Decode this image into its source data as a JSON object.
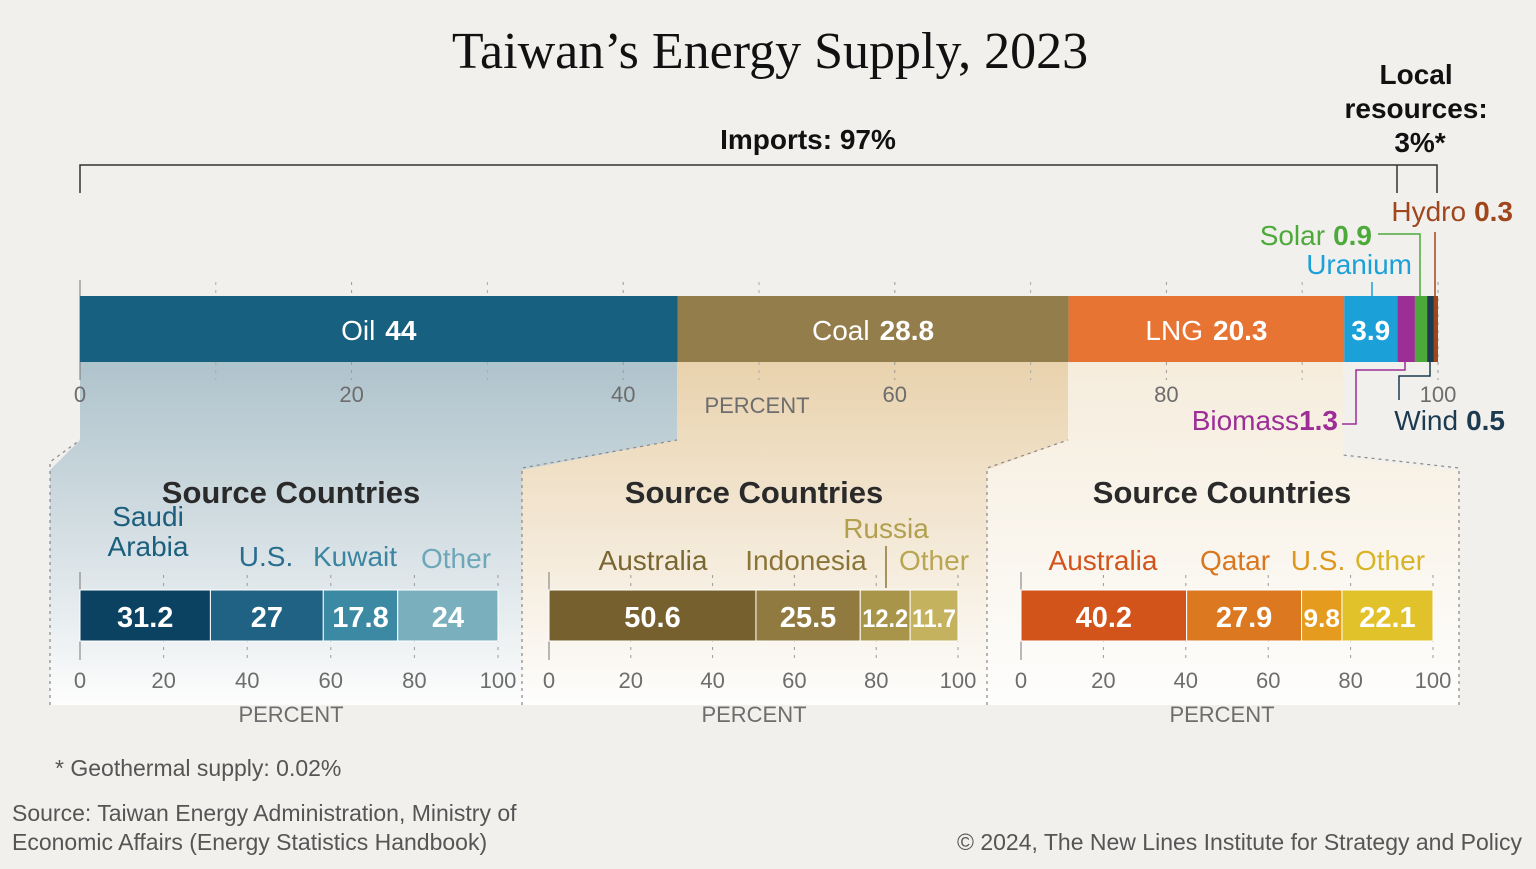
{
  "title": "Taiwan’s Energy Supply, 2023",
  "imports_label": "Imports: 97%",
  "local_label": [
    "Local",
    "resources:",
    "3%*"
  ],
  "footnote": "*  Geothermal supply: 0.02%",
  "source": [
    "Source: Taiwan Energy Administration, Ministry of",
    "Economic Affairs (Energy Statistics Handbook)"
  ],
  "copyright": "© 2024, The New Lines Institute for Strategy and Policy",
  "chart_data": [
    {
      "type": "bar",
      "orientation": "horizontal-stacked",
      "xlabel": "PERCENT",
      "xlim": [
        0,
        100
      ],
      "ticks": [
        "0",
        "20",
        "40",
        "60",
        "80",
        "100"
      ],
      "series": [
        {
          "name": "Oil",
          "value": 44,
          "color": "#17607f"
        },
        {
          "name": "Coal",
          "value": 28.8,
          "color": "#937d4a"
        },
        {
          "name": "LNG",
          "value": 20.3,
          "color": "#e77433"
        },
        {
          "name": "Uranium",
          "value": 3.9,
          "color": "#1ba0d8"
        },
        {
          "name": "Biomass",
          "value": 1.3,
          "color": "#9c2e96"
        },
        {
          "name": "Solar",
          "value": 0.9,
          "color": "#4ea93b"
        },
        {
          "name": "Wind",
          "value": 0.5,
          "color": "#1c3a50"
        },
        {
          "name": "Hydro",
          "value": 0.3,
          "color": "#a0461d"
        }
      ]
    },
    {
      "type": "bar",
      "orientation": "horizontal-stacked",
      "title": "Source Countries",
      "xlabel": "PERCENT",
      "xlim": [
        0,
        100
      ],
      "ticks": [
        "0",
        "20",
        "40",
        "60",
        "80",
        "100"
      ],
      "series": [
        {
          "name": "Saudi Arabia",
          "value": 31.2,
          "color": "#0b4262",
          "label_color": "#1b5e7d"
        },
        {
          "name": "U.S.",
          "value": 27,
          "color": "#1f6283",
          "label_color": "#2a6e8e"
        },
        {
          "name": "Kuwait",
          "value": 17.8,
          "color": "#3b89a3",
          "label_color": "#3b85a0"
        },
        {
          "name": "Other",
          "value": 24,
          "color": "#7aafbd",
          "label_color": "#6ea7b8"
        }
      ]
    },
    {
      "type": "bar",
      "orientation": "horizontal-stacked",
      "title": "Source Countries",
      "xlabel": "PERCENT",
      "xlim": [
        0,
        100
      ],
      "ticks": [
        "0",
        "20",
        "40",
        "60",
        "80",
        "100"
      ],
      "series": [
        {
          "name": "Australia",
          "value": 50.6,
          "color": "#75602e",
          "label_color": "#7a6630"
        },
        {
          "name": "Indonesia",
          "value": 25.5,
          "color": "#917a3f",
          "label_color": "#8a7537"
        },
        {
          "name": "Russia",
          "value": 12.2,
          "color": "#a99549",
          "label_color": "#b2a04f"
        },
        {
          "name": "Other",
          "value": 11.7,
          "color": "#c4b25e",
          "label_color": "#b8a652"
        }
      ]
    },
    {
      "type": "bar",
      "orientation": "horizontal-stacked",
      "title": "Source Countries",
      "xlabel": "PERCENT",
      "xlim": [
        0,
        100
      ],
      "ticks": [
        "0",
        "20",
        "40",
        "60",
        "80",
        "100"
      ],
      "series": [
        {
          "name": "Australia",
          "value": 40.2,
          "color": "#d2541b",
          "label_color": "#d2541b"
        },
        {
          "name": "Qatar",
          "value": 27.9,
          "color": "#dc7820",
          "label_color": "#d9771f"
        },
        {
          "name": "U.S.",
          "value": 9.8,
          "color": "#e59b1e",
          "label_color": "#dd981d"
        },
        {
          "name": "Other",
          "value": 22.1,
          "color": "#e2c22a",
          "label_color": "#d8b526"
        }
      ]
    }
  ]
}
